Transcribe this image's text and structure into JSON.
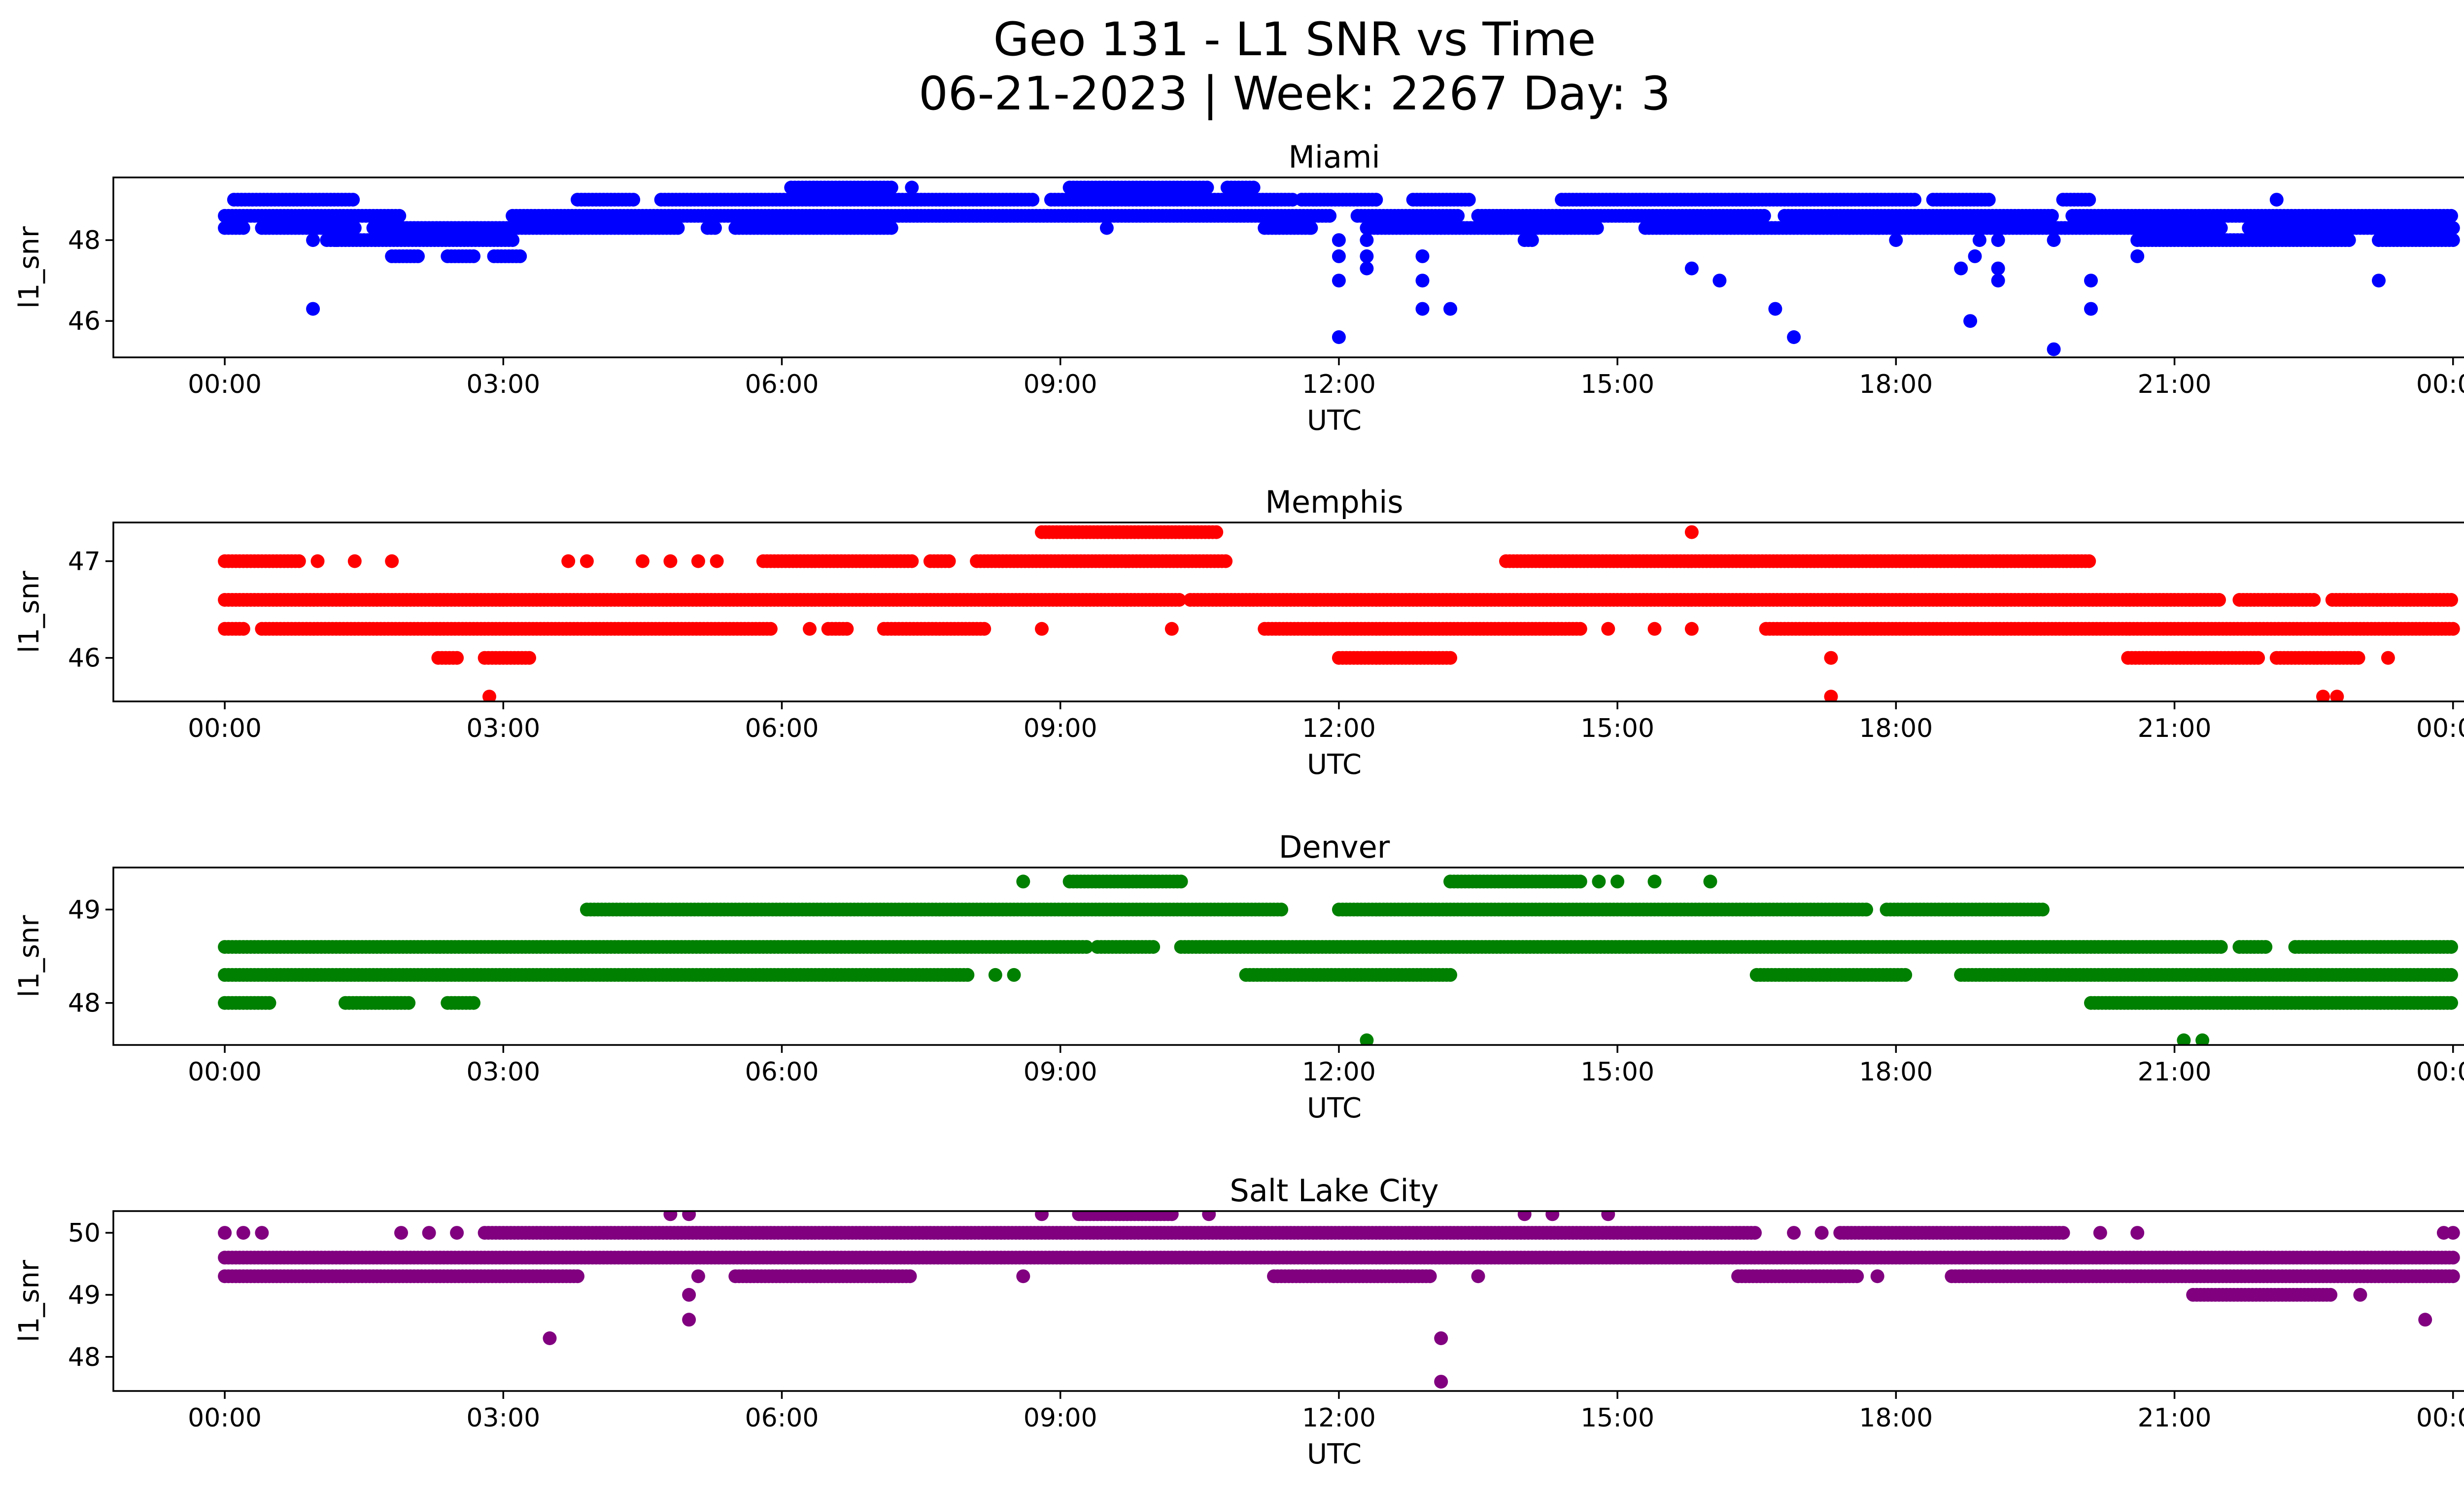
{
  "figure": {
    "title_line1": "Geo 131 - L1 SNR vs Time",
    "title_line2": "06-21-2023 | Week: 2267 Day: 3"
  },
  "chart_data": [
    {
      "type": "scatter",
      "title": "Miami",
      "xlabel": "UTC",
      "ylabel": "l1_snr",
      "color": "#0000ff",
      "x_unit": "hours UTC",
      "xlim": [
        -1.2,
        25.1
      ],
      "xticks": [
        0,
        3,
        6,
        9,
        12,
        15,
        18,
        21,
        24
      ],
      "xtick_labels": [
        "00:00",
        "03:00",
        "06:00",
        "09:00",
        "12:00",
        "15:00",
        "18:00",
        "21:00",
        "00:00"
      ],
      "ylim": [
        45.1,
        49.55
      ],
      "yticks": [
        46,
        48
      ],
      "ytick_labels": [
        "46",
        "48"
      ],
      "bands": [
        {
          "y": 48.3,
          "segments": [
            [
              0.0,
              0.2
            ],
            [
              0.4,
              1.4
            ],
            [
              1.6,
              4.9
            ],
            [
              5.2,
              5.3
            ],
            [
              5.5,
              7.2
            ],
            [
              11.2,
              11.7
            ],
            [
              12.3,
              14.8
            ],
            [
              15.3,
              21.5
            ],
            [
              21.8,
              24.0
            ]
          ]
        },
        {
          "y": 48.6,
          "segments": [
            [
              0.0,
              1.9
            ],
            [
              3.1,
              11.9
            ],
            [
              12.2,
              13.3
            ],
            [
              13.5,
              16.6
            ],
            [
              16.8,
              19.7
            ],
            [
              19.9,
              24.0
            ]
          ]
        },
        {
          "y": 49.0,
          "segments": [
            [
              0.1,
              1.4
            ],
            [
              3.8,
              4.4
            ],
            [
              4.7,
              8.7
            ],
            [
              8.9,
              11.5
            ],
            [
              11.6,
              12.4
            ],
            [
              12.8,
              13.4
            ],
            [
              14.4,
              18.2
            ],
            [
              18.4,
              19.0
            ],
            [
              19.8,
              20.1
            ]
          ]
        },
        {
          "y": 49.3,
          "segments": [
            [
              6.1,
              7.2
            ],
            [
              9.1,
              10.6
            ],
            [
              10.8,
              11.1
            ]
          ]
        },
        {
          "y": 48.0,
          "segments": [
            [
              1.1,
              3.1
            ],
            [
              14.0,
              14.1
            ],
            [
              20.6,
              22.9
            ],
            [
              23.2,
              24.0
            ]
          ]
        },
        {
          "y": 47.6,
          "segments": [
            [
              1.8,
              2.1
            ],
            [
              2.4,
              2.7
            ],
            [
              2.9,
              3.2
            ]
          ]
        }
      ],
      "points": [
        {
          "x": 0.95,
          "y": 46.3
        },
        {
          "x": 0.95,
          "y": 48.0
        },
        {
          "x": 1.2,
          "y": 48.0
        },
        {
          "x": 7.4,
          "y": 49.3
        },
        {
          "x": 9.5,
          "y": 48.3
        },
        {
          "x": 11.7,
          "y": 48.3
        },
        {
          "x": 12.0,
          "y": 45.6
        },
        {
          "x": 12.0,
          "y": 47.0
        },
        {
          "x": 12.0,
          "y": 47.6
        },
        {
          "x": 12.0,
          "y": 48.0
        },
        {
          "x": 12.3,
          "y": 47.3
        },
        {
          "x": 12.3,
          "y": 47.6
        },
        {
          "x": 12.3,
          "y": 48.0
        },
        {
          "x": 12.9,
          "y": 46.3
        },
        {
          "x": 12.9,
          "y": 47.0
        },
        {
          "x": 12.9,
          "y": 47.6
        },
        {
          "x": 13.2,
          "y": 46.3
        },
        {
          "x": 15.8,
          "y": 47.3
        },
        {
          "x": 16.1,
          "y": 47.0
        },
        {
          "x": 16.7,
          "y": 46.3
        },
        {
          "x": 16.9,
          "y": 45.6
        },
        {
          "x": 17.5,
          "y": 48.3
        },
        {
          "x": 18.0,
          "y": 48.0
        },
        {
          "x": 18.7,
          "y": 47.3
        },
        {
          "x": 18.8,
          "y": 46.0
        },
        {
          "x": 18.85,
          "y": 47.6
        },
        {
          "x": 18.9,
          "y": 48.0
        },
        {
          "x": 19.1,
          "y": 47.0
        },
        {
          "x": 19.1,
          "y": 47.3
        },
        {
          "x": 19.1,
          "y": 48.0
        },
        {
          "x": 19.7,
          "y": 45.3
        },
        {
          "x": 19.7,
          "y": 48.0
        },
        {
          "x": 20.1,
          "y": 46.3
        },
        {
          "x": 20.1,
          "y": 47.0
        },
        {
          "x": 20.6,
          "y": 47.6
        },
        {
          "x": 22.1,
          "y": 49.0
        },
        {
          "x": 23.2,
          "y": 47.0
        }
      ]
    },
    {
      "type": "scatter",
      "title": "Memphis",
      "xlabel": "UTC",
      "ylabel": "l1_snr",
      "color": "#ff0000",
      "x_unit": "hours UTC",
      "xlim": [
        -1.2,
        25.1
      ],
      "xticks": [
        0,
        3,
        6,
        9,
        12,
        15,
        18,
        21,
        24
      ],
      "xtick_labels": [
        "00:00",
        "03:00",
        "06:00",
        "09:00",
        "12:00",
        "15:00",
        "18:00",
        "21:00",
        "00:00"
      ],
      "ylim": [
        45.55,
        47.4
      ],
      "yticks": [
        46,
        47
      ],
      "ytick_labels": [
        "46",
        "47"
      ],
      "bands": [
        {
          "y": 46.6,
          "segments": [
            [
              0.0,
              10.3
            ],
            [
              10.4,
              21.5
            ],
            [
              21.7,
              22.5
            ],
            [
              22.7,
              24.0
            ]
          ]
        },
        {
          "y": 46.3,
          "segments": [
            [
              0.0,
              0.2
            ],
            [
              0.4,
              5.9
            ],
            [
              6.5,
              6.7
            ],
            [
              7.1,
              8.2
            ],
            [
              11.2,
              14.6
            ],
            [
              16.6,
              24.0
            ]
          ]
        },
        {
          "y": 47.0,
          "segments": [
            [
              0.0,
              0.8
            ],
            [
              5.8,
              7.4
            ],
            [
              7.6,
              7.8
            ],
            [
              8.1,
              10.8
            ],
            [
              13.8,
              20.1
            ]
          ]
        },
        {
          "y": 47.3,
          "segments": [
            [
              8.8,
              10.7
            ]
          ]
        },
        {
          "y": 46.0,
          "segments": [
            [
              2.3,
              2.5
            ],
            [
              2.8,
              3.3
            ],
            [
              12.0,
              13.2
            ],
            [
              20.5,
              21.9
            ],
            [
              22.1,
              23.0
            ]
          ]
        }
      ],
      "points": [
        {
          "x": 1.0,
          "y": 47.0
        },
        {
          "x": 1.4,
          "y": 47.0
        },
        {
          "x": 1.8,
          "y": 47.0
        },
        {
          "x": 3.7,
          "y": 47.0
        },
        {
          "x": 3.9,
          "y": 47.0
        },
        {
          "x": 4.5,
          "y": 47.0
        },
        {
          "x": 4.8,
          "y": 47.0
        },
        {
          "x": 5.1,
          "y": 47.0
        },
        {
          "x": 5.3,
          "y": 47.0
        },
        {
          "x": 2.85,
          "y": 45.6
        },
        {
          "x": 6.3,
          "y": 46.3
        },
        {
          "x": 8.8,
          "y": 46.3
        },
        {
          "x": 10.2,
          "y": 46.3
        },
        {
          "x": 14.9,
          "y": 46.3
        },
        {
          "x": 15.4,
          "y": 46.3
        },
        {
          "x": 15.8,
          "y": 46.3
        },
        {
          "x": 15.8,
          "y": 47.3
        },
        {
          "x": 17.3,
          "y": 45.6
        },
        {
          "x": 17.3,
          "y": 46.0
        },
        {
          "x": 22.6,
          "y": 45.6
        },
        {
          "x": 22.75,
          "y": 45.6
        },
        {
          "x": 23.3,
          "y": 46.0
        }
      ]
    },
    {
      "type": "scatter",
      "title": "Denver",
      "xlabel": "UTC",
      "ylabel": "l1_snr",
      "color": "#008000",
      "x_unit": "hours UTC",
      "xlim": [
        -1.2,
        25.1
      ],
      "xticks": [
        0,
        3,
        6,
        9,
        12,
        15,
        18,
        21,
        24
      ],
      "xtick_labels": [
        "00:00",
        "03:00",
        "06:00",
        "09:00",
        "12:00",
        "15:00",
        "18:00",
        "21:00",
        "00:00"
      ],
      "ylim": [
        47.55,
        49.45
      ],
      "yticks": [
        48,
        49
      ],
      "ytick_labels": [
        "48",
        "49"
      ],
      "bands": [
        {
          "y": 48.6,
          "segments": [
            [
              0.0,
              9.3
            ],
            [
              9.4,
              10.0
            ],
            [
              10.3,
              21.5
            ],
            [
              21.7,
              22.0
            ],
            [
              22.3,
              24.0
            ]
          ]
        },
        {
          "y": 48.3,
          "segments": [
            [
              0.0,
              8.0
            ],
            [
              11.0,
              13.2
            ],
            [
              16.5,
              18.1
            ],
            [
              18.7,
              24.0
            ]
          ]
        },
        {
          "y": 49.0,
          "segments": [
            [
              3.9,
              11.4
            ],
            [
              12.0,
              17.7
            ],
            [
              17.9,
              19.6
            ]
          ]
        },
        {
          "y": 49.3,
          "segments": [
            [
              9.1,
              10.3
            ],
            [
              13.2,
              14.6
            ]
          ]
        },
        {
          "y": 48.0,
          "segments": [
            [
              0.0,
              0.5
            ],
            [
              1.3,
              2.0
            ],
            [
              2.4,
              2.7
            ],
            [
              20.1,
              24.0
            ]
          ]
        }
      ],
      "points": [
        {
          "x": 8.3,
          "y": 48.3
        },
        {
          "x": 8.5,
          "y": 48.3
        },
        {
          "x": 8.6,
          "y": 49.3
        },
        {
          "x": 12.3,
          "y": 47.6
        },
        {
          "x": 14.8,
          "y": 49.3
        },
        {
          "x": 15.0,
          "y": 49.3
        },
        {
          "x": 15.4,
          "y": 49.3
        },
        {
          "x": 16.0,
          "y": 49.3
        },
        {
          "x": 21.1,
          "y": 47.6
        },
        {
          "x": 21.3,
          "y": 47.6
        }
      ]
    },
    {
      "type": "scatter",
      "title": "Salt Lake City",
      "xlabel": "UTC",
      "ylabel": "l1_snr",
      "color": "#800080",
      "x_unit": "hours UTC",
      "xlim": [
        -1.2,
        25.1
      ],
      "xticks": [
        0,
        3,
        6,
        9,
        12,
        15,
        18,
        21,
        24
      ],
      "xtick_labels": [
        "00:00",
        "03:00",
        "06:00",
        "09:00",
        "12:00",
        "15:00",
        "18:00",
        "21:00",
        "00:00"
      ],
      "ylim": [
        47.45,
        50.35
      ],
      "yticks": [
        48,
        49,
        50
      ],
      "ytick_labels": [
        "48",
        "49",
        "50"
      ],
      "bands": [
        {
          "y": 49.6,
          "segments": [
            [
              0.0,
              24.0
            ]
          ]
        },
        {
          "y": 49.3,
          "segments": [
            [
              0.0,
              3.8
            ],
            [
              5.5,
              7.4
            ],
            [
              11.3,
              13.0
            ],
            [
              16.3,
              17.6
            ],
            [
              18.6,
              24.0
            ]
          ]
        },
        {
          "y": 50.0,
          "segments": [
            [
              2.8,
              16.5
            ],
            [
              17.4,
              19.8
            ]
          ]
        },
        {
          "y": 50.3,
          "segments": [
            [
              9.2,
              10.2
            ]
          ]
        },
        {
          "y": 49.0,
          "segments": [
            [
              21.2,
              22.7
            ]
          ]
        }
      ],
      "points": [
        {
          "x": 0.0,
          "y": 50.0
        },
        {
          "x": 0.2,
          "y": 50.0
        },
        {
          "x": 0.4,
          "y": 50.0
        },
        {
          "x": 1.9,
          "y": 50.0
        },
        {
          "x": 2.2,
          "y": 50.0
        },
        {
          "x": 2.5,
          "y": 50.0
        },
        {
          "x": 3.5,
          "y": 48.3
        },
        {
          "x": 4.8,
          "y": 50.3
        },
        {
          "x": 5.0,
          "y": 50.3
        },
        {
          "x": 5.0,
          "y": 48.6
        },
        {
          "x": 5.0,
          "y": 49.0
        },
        {
          "x": 5.1,
          "y": 49.3
        },
        {
          "x": 8.6,
          "y": 49.3
        },
        {
          "x": 8.8,
          "y": 50.3
        },
        {
          "x": 10.6,
          "y": 50.3
        },
        {
          "x": 13.1,
          "y": 47.6
        },
        {
          "x": 13.1,
          "y": 48.3
        },
        {
          "x": 13.5,
          "y": 49.3
        },
        {
          "x": 14.0,
          "y": 50.3
        },
        {
          "x": 14.3,
          "y": 50.3
        },
        {
          "x": 14.9,
          "y": 50.3
        },
        {
          "x": 16.9,
          "y": 50.0
        },
        {
          "x": 17.2,
          "y": 50.0
        },
        {
          "x": 17.4,
          "y": 49.3
        },
        {
          "x": 17.8,
          "y": 49.3
        },
        {
          "x": 20.2,
          "y": 50.0
        },
        {
          "x": 20.6,
          "y": 50.0
        },
        {
          "x": 23.0,
          "y": 49.0
        },
        {
          "x": 23.7,
          "y": 48.6
        },
        {
          "x": 23.9,
          "y": 50.0
        },
        {
          "x": 24.0,
          "y": 50.0
        }
      ]
    }
  ]
}
